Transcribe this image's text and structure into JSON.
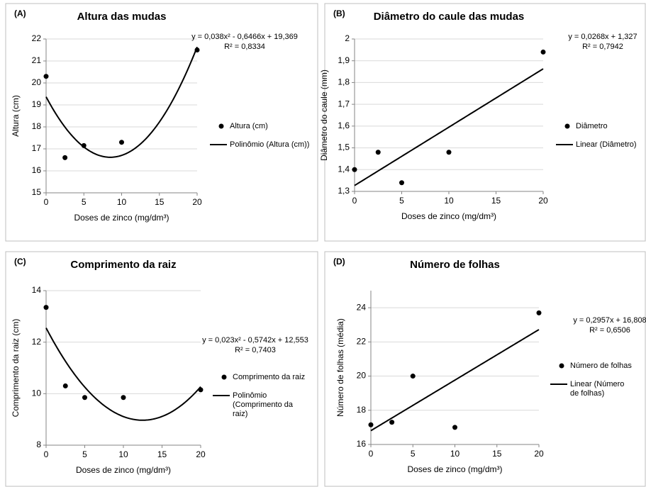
{
  "chart_data": [
    {
      "type": "scatter",
      "panel_label": "(A)",
      "title": "Altura das mudas",
      "x_label": "Doses de zinco (mg/dm³)",
      "y_label": "Altura (cm)",
      "x": [
        0,
        2.5,
        5,
        10,
        20
      ],
      "series": [
        {
          "name": "Altura (cm)",
          "color": "#000000",
          "values": [
            20.3,
            16.6,
            17.15,
            17.3,
            21.5
          ]
        }
      ],
      "trendline": {
        "name": "Polinômio (Altura (cm))",
        "color": "#000000",
        "coefficients": [
          0.038,
          -0.6466,
          19.369
        ],
        "equation": "y = 0,038x² - 0,6466x + 19,369",
        "r_squared": "R² = 0,8334"
      },
      "xlim": [
        0,
        20
      ],
      "xticks": [
        0,
        5,
        10,
        15,
        20
      ],
      "ylim": [
        15,
        22
      ],
      "yticks": [
        15,
        16,
        17,
        18,
        19,
        20,
        21,
        22
      ],
      "grid": true
    },
    {
      "type": "scatter",
      "panel_label": "(B)",
      "title": "Diâmetro do caule das mudas",
      "x_label": "Doses de zinco (mg/dm³)",
      "y_label": "Diâmetro do caule (mm)",
      "x": [
        0,
        2.5,
        5,
        10,
        20
      ],
      "series": [
        {
          "name": "Diâmetro",
          "color": "#000000",
          "values": [
            1.4,
            1.48,
            1.34,
            1.48,
            1.94
          ]
        }
      ],
      "trendline": {
        "name": "Linear (Diâmetro)",
        "color": "#000000",
        "coefficients": [
          0.0268,
          1.327
        ],
        "equation": "y = 0,0268x + 1,327",
        "r_squared": "R² = 0,7942"
      },
      "xlim": [
        0,
        20
      ],
      "xticks": [
        0,
        5,
        10,
        15,
        20
      ],
      "ylim": [
        1.3,
        2
      ],
      "yticks": [
        {
          "value": 1.3,
          "label": "1,3"
        },
        {
          "value": 1.4,
          "label": "1,4"
        },
        {
          "value": 1.5,
          "label": "1,5"
        },
        {
          "value": 1.6,
          "label": "1,6"
        },
        {
          "value": 1.7,
          "label": "1,7"
        },
        {
          "value": 1.8,
          "label": "1,8"
        },
        {
          "value": 1.9,
          "label": "1,9"
        },
        2
      ],
      "grid": true
    },
    {
      "type": "scatter",
      "panel_label": "(C)",
      "title": "Comprimento da raiz",
      "x_label": "Doses de zinco (mg/dm³)",
      "y_label": "Comprimento da raiz (cm)",
      "x": [
        0,
        2.5,
        5,
        10,
        20
      ],
      "series": [
        {
          "name": "Comprimento da raiz",
          "color": "#000000",
          "values": [
            13.35,
            10.3,
            9.85,
            9.85,
            10.15
          ]
        }
      ],
      "trendline": {
        "name": "Polinômio (Comprimento da raiz)",
        "color": "#000000",
        "coefficients": [
          0.023,
          -0.5742,
          12.553
        ],
        "equation": "y = 0,023x² - 0,5742x + 12,553",
        "r_squared": "R² = 0,7403"
      },
      "xlim": [
        0,
        20
      ],
      "xticks": [
        0,
        5,
        10,
        15,
        20
      ],
      "ylim": [
        8,
        14
      ],
      "yticks": [
        8,
        10,
        12,
        14
      ],
      "grid": true
    },
    {
      "type": "scatter",
      "panel_label": "(D)",
      "title": "Número de folhas",
      "x_label": "Doses de zinco (mg/dm³)",
      "y_label": "Número de folhas (média)",
      "x": [
        0,
        2.5,
        5,
        10,
        20
      ],
      "series": [
        {
          "name": "Número de folhas",
          "color": "#000000",
          "values": [
            17.15,
            17.3,
            20,
            17,
            23.7
          ]
        }
      ],
      "trendline": {
        "name": "Linear (Número de folhas)",
        "color": "#000000",
        "coefficients": [
          0.2957,
          16.808
        ],
        "equation": "y = 0,2957x + 16,808",
        "r_squared": "R² = 0,6506"
      },
      "xlim": [
        0,
        20
      ],
      "xticks": [
        0,
        5,
        10,
        15,
        20
      ],
      "ylim": [
        16,
        25
      ],
      "yticks": [
        16,
        18,
        20,
        22,
        24
      ],
      "grid": true
    }
  ]
}
